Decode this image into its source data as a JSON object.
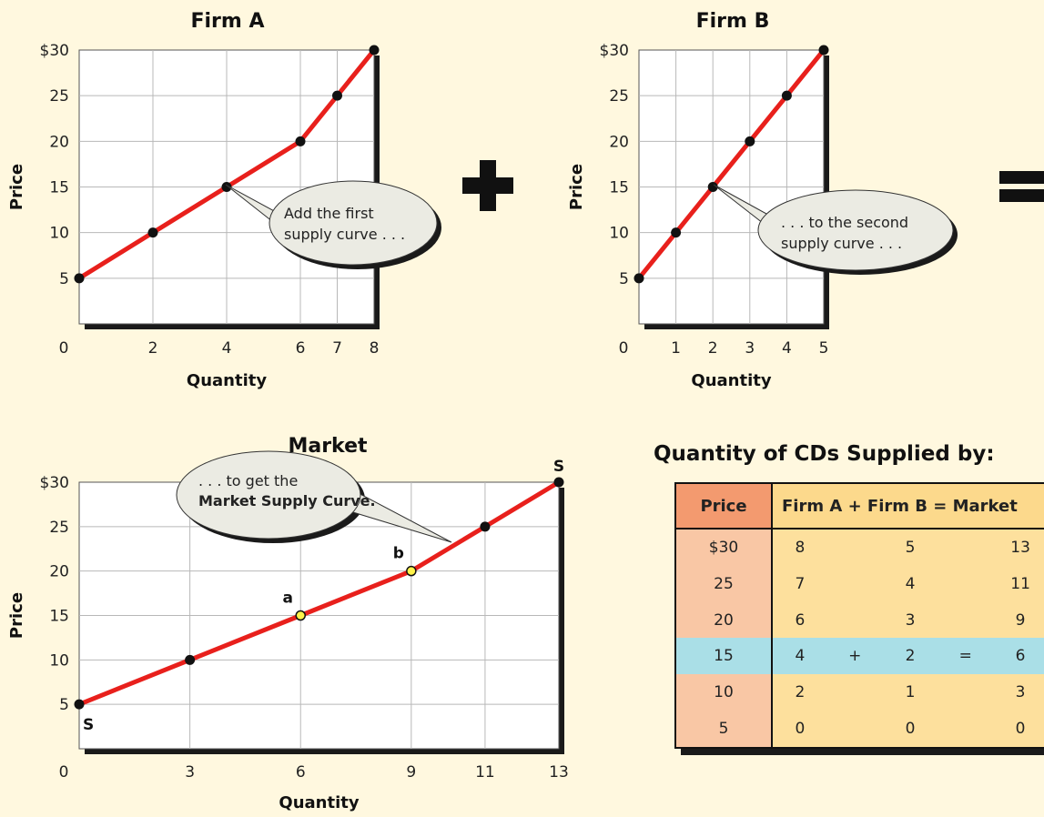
{
  "operators": {
    "plus_sign": "+",
    "equals_sign": "="
  },
  "chart_data": [
    {
      "type": "line",
      "title": "Firm A",
      "xlabel": "Quantity",
      "ylabel": "Price",
      "x_ticks": [
        "0",
        "2",
        "4",
        "6",
        "7",
        "8"
      ],
      "y_ticks": [
        "5",
        "10",
        "15",
        "20",
        "25",
        "$30"
      ],
      "points": [
        {
          "x": 0,
          "y": 5
        },
        {
          "x": 2,
          "y": 10
        },
        {
          "x": 4,
          "y": 15
        },
        {
          "x": 6,
          "y": 20
        },
        {
          "x": 7,
          "y": 25
        },
        {
          "x": 8,
          "y": 30
        }
      ],
      "xlim": [
        0,
        8
      ],
      "ylim": [
        0,
        30
      ],
      "callout": [
        "Add the first",
        "supply curve . . ."
      ]
    },
    {
      "type": "line",
      "title": "Firm B",
      "xlabel": "Quantity",
      "ylabel": "Price",
      "x_ticks": [
        "0",
        "1",
        "2",
        "3",
        "4",
        "5"
      ],
      "y_ticks": [
        "5",
        "10",
        "15",
        "20",
        "25",
        "$30"
      ],
      "points": [
        {
          "x": 0,
          "y": 5
        },
        {
          "x": 1,
          "y": 10
        },
        {
          "x": 2,
          "y": 15
        },
        {
          "x": 3,
          "y": 20
        },
        {
          "x": 4,
          "y": 25
        },
        {
          "x": 5,
          "y": 30
        }
      ],
      "xlim": [
        0,
        5
      ],
      "ylim": [
        0,
        30
      ],
      "callout": [
        ". . . to the second",
        "supply curve . . ."
      ]
    },
    {
      "type": "line",
      "title": "Market",
      "xlabel": "Quantity",
      "ylabel": "Price",
      "x_ticks": [
        "0",
        "3",
        "6",
        "9",
        "11",
        "13"
      ],
      "y_ticks": [
        "5",
        "10",
        "15",
        "20",
        "25",
        "$30"
      ],
      "points": [
        {
          "x": 0,
          "y": 5
        },
        {
          "x": 3,
          "y": 10
        },
        {
          "x": 6,
          "y": 15,
          "label": "a"
        },
        {
          "x": 9,
          "y": 20,
          "label": "b"
        },
        {
          "x": 11,
          "y": 25
        },
        {
          "x": 13,
          "y": 30
        }
      ],
      "xlim": [
        0,
        13
      ],
      "ylim": [
        0,
        30
      ],
      "curve_label": "S",
      "callout": [
        ". . . to get the",
        "Market Supply Curve."
      ]
    }
  ],
  "table": {
    "title": "Quantity of CDs Supplied by:",
    "header_price": "Price",
    "header_firms": "Firm A + Firm B = Market",
    "plus": "+",
    "equals": "=",
    "rows": [
      {
        "price": "$30",
        "a": "8",
        "b": "5",
        "m": "13"
      },
      {
        "price": "25",
        "a": "7",
        "b": "4",
        "m": "11"
      },
      {
        "price": "20",
        "a": "6",
        "b": "3",
        "m": "9"
      },
      {
        "price": "15",
        "a": "4",
        "b": "2",
        "m": "6",
        "highlight": true
      },
      {
        "price": "10",
        "a": "2",
        "b": "1",
        "m": "3"
      },
      {
        "price": "5",
        "a": "0",
        "b": "0",
        "m": "0"
      }
    ]
  }
}
